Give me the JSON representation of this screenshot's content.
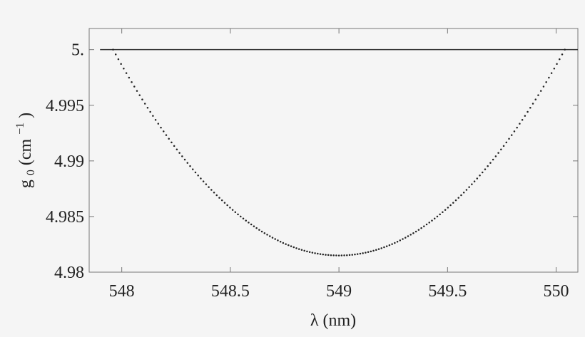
{
  "chart_data": {
    "type": "line",
    "title": "",
    "xlabel": "λ (nm)",
    "ylabel_base": "g",
    "ylabel_sub": "0",
    "ylabel_unit_open": " (cm",
    "ylabel_unit_exp": "−1",
    "ylabel_unit_close": ")",
    "xlim": [
      547.85,
      550.1
    ],
    "ylim": [
      4.98,
      5.0019
    ],
    "xticks": [
      548,
      548.5,
      549,
      549.5,
      550
    ],
    "xtick_labels": [
      "548",
      "548.5",
      "549",
      "549.5",
      "550"
    ],
    "yticks": [
      4.98,
      4.985,
      4.99,
      4.995,
      5.0
    ],
    "ytick_labels": [
      "4.98",
      "4.985",
      "4.99",
      "4.995",
      "5."
    ],
    "grid": false,
    "series": [
      {
        "style": "solid",
        "color": "#333333",
        "x": [
          547.9,
          550.1
        ],
        "y": [
          5.0,
          5.0
        ]
      },
      {
        "style": "dotted",
        "color": "#222222",
        "x_range": [
          547.96,
          550.04
        ],
        "min_x": 549.0,
        "min_y": 4.9815,
        "edge_y": 5.0
      }
    ]
  }
}
